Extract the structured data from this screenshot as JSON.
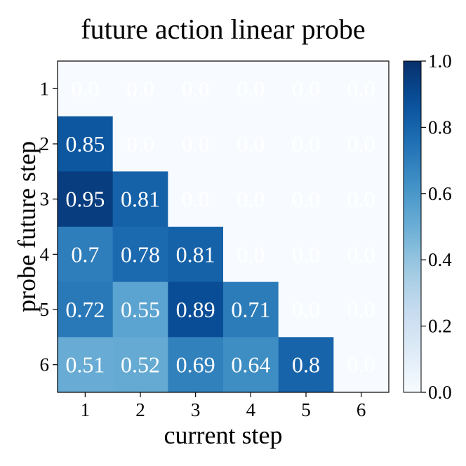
{
  "chart_data": {
    "type": "heatmap",
    "title": "future action linear probe",
    "xlabel": "current step",
    "ylabel": "probe future step",
    "x_categories": [
      "1",
      "2",
      "3",
      "4",
      "5",
      "6"
    ],
    "y_categories": [
      "1",
      "2",
      "3",
      "4",
      "5",
      "6"
    ],
    "values": [
      [
        0.0,
        0.0,
        0.0,
        0.0,
        0.0,
        0.0
      ],
      [
        0.85,
        0.0,
        0.0,
        0.0,
        0.0,
        0.0
      ],
      [
        0.95,
        0.81,
        0.0,
        0.0,
        0.0,
        0.0
      ],
      [
        0.7,
        0.78,
        0.81,
        0.0,
        0.0,
        0.0
      ],
      [
        0.72,
        0.55,
        0.89,
        0.71,
        0.0,
        0.0
      ],
      [
        0.51,
        0.52,
        0.69,
        0.64,
        0.8,
        0.0
      ]
    ],
    "cell_labels": [
      [
        "0.0",
        "0.0",
        "0.0",
        "0.0",
        "0.0",
        "0.0"
      ],
      [
        "0.85",
        "0.0",
        "0.0",
        "0.0",
        "0.0",
        "0.0"
      ],
      [
        "0.95",
        "0.81",
        "0.0",
        "0.0",
        "0.0",
        "0.0"
      ],
      [
        "0.7",
        "0.78",
        "0.81",
        "0.0",
        "0.0",
        "0.0"
      ],
      [
        "0.72",
        "0.55",
        "0.89",
        "0.71",
        "0.0",
        "0.0"
      ],
      [
        "0.51",
        "0.52",
        "0.69",
        "0.64",
        "0.8",
        "0.0"
      ]
    ],
    "colorbar": {
      "min": 0.0,
      "max": 1.0,
      "ticks": [
        "0.0",
        "0.2",
        "0.4",
        "0.6",
        "0.8",
        "1.0"
      ],
      "colormap": "Blues",
      "color_low": "#f7fbff",
      "color_high": "#08306b"
    },
    "grid": false
  }
}
